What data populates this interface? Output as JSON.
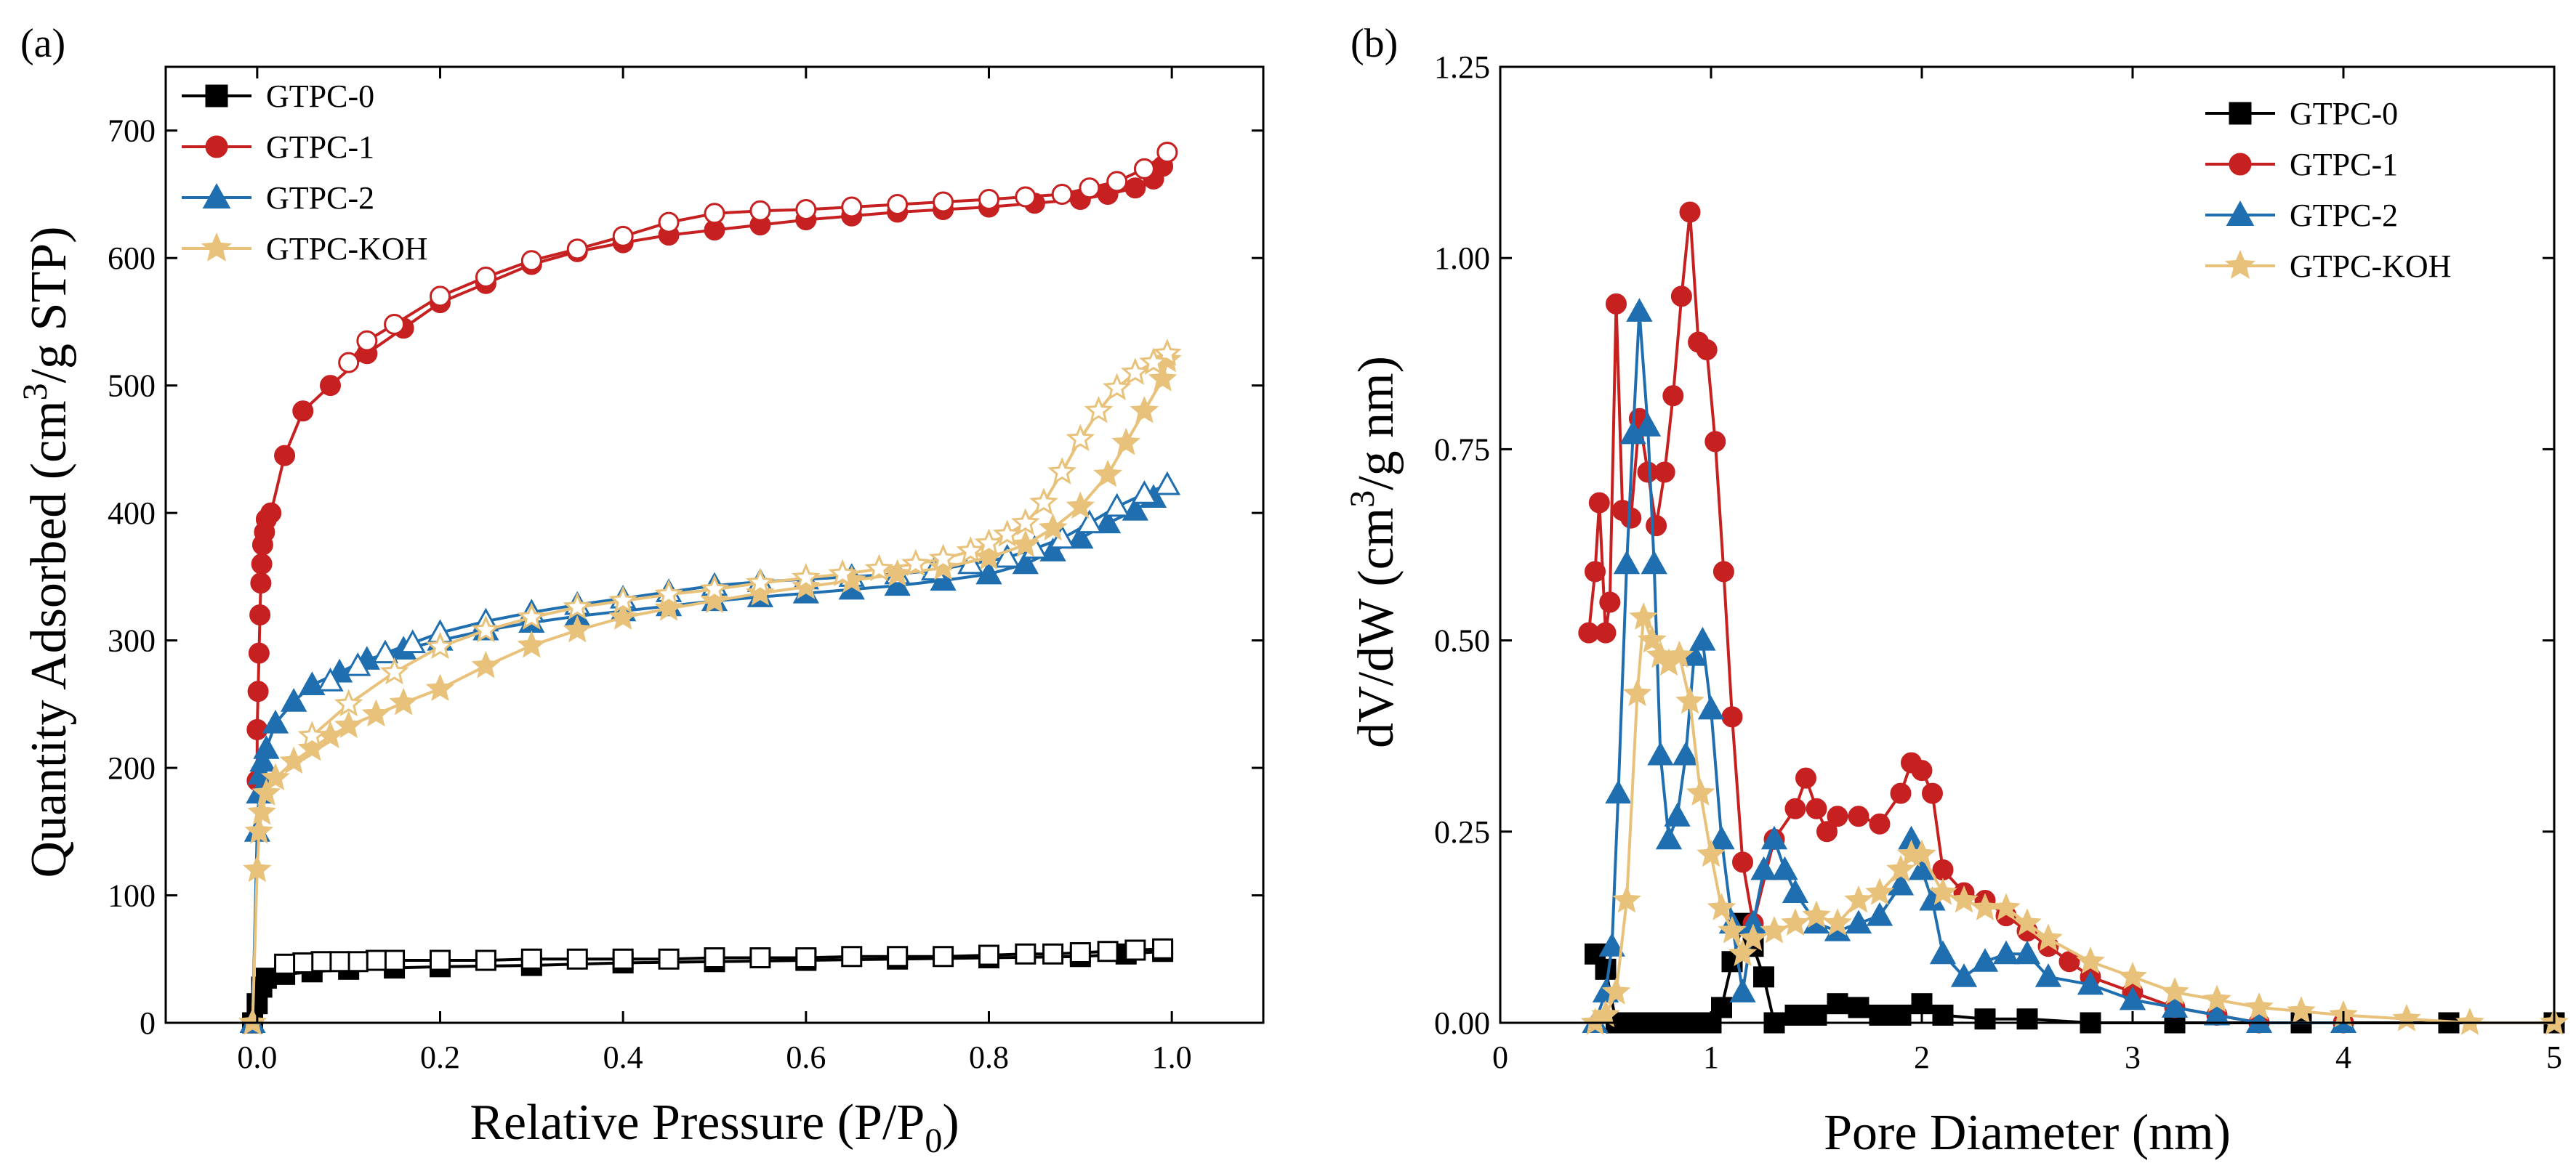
{
  "chart_data": [
    {
      "panel": "(a)",
      "type": "line",
      "xlabel": "Relative Pressure (P/P",
      "xlabel_sub": "0",
      "xlabel_end": ")",
      "ylabel": "Quantity Adsorbed (cm",
      "ylabel_sup": "3",
      "ylabel_end": "/g STP)",
      "xlim": [
        -0.1,
        1.1
      ],
      "ylim": [
        0,
        750
      ],
      "xticks": [
        0.0,
        0.2,
        0.4,
        0.6,
        0.8,
        1.0
      ],
      "xtick_labels": [
        "0.0",
        "0.2",
        "0.4",
        "0.6",
        "0.8",
        "1.0"
      ],
      "yticks": [
        0,
        100,
        200,
        300,
        400,
        500,
        600,
        700
      ],
      "ytick_labels": [
        "0",
        "100",
        "200",
        "300",
        "400",
        "500",
        "600",
        "700"
      ],
      "legend": "top-left",
      "series": [
        {
          "name": "GTPC-0",
          "color": "#000000",
          "marker": "square",
          "adsorption": {
            "x": [
              -0.005,
              0.0,
              0.005,
              0.01,
              0.03,
              0.06,
              0.1,
              0.15,
              0.2,
              0.3,
              0.4,
              0.5,
              0.6,
              0.7,
              0.8,
              0.9,
              0.95,
              0.99
            ],
            "y": [
              0,
              15,
              28,
              35,
              38,
              40,
              42,
              43,
              44,
              45,
              47,
              48,
              49,
              50,
              51,
              52,
              54,
              56
            ]
          },
          "desorption": {
            "x": [
              0.99,
              0.96,
              0.93,
              0.9,
              0.87,
              0.84,
              0.8,
              0.75,
              0.7,
              0.65,
              0.6,
              0.55,
              0.5,
              0.45,
              0.4,
              0.35,
              0.3,
              0.25,
              0.2,
              0.15,
              0.13,
              0.11,
              0.09,
              0.07,
              0.05,
              0.03
            ],
            "y": [
              58,
              57,
              56,
              55,
              54,
              54,
              53,
              52,
              52,
              52,
              51,
              51,
              51,
              50,
              50,
              50,
              50,
              49,
              49,
              49,
              49,
              48,
              48,
              48,
              47,
              46
            ]
          }
        },
        {
          "name": "GTPC-1",
          "color": "#c62021",
          "marker": "circle",
          "adsorption": {
            "x": [
              0.0,
              0.0,
              0.001,
              0.002,
              0.003,
              0.004,
              0.005,
              0.006,
              0.008,
              0.01,
              0.015,
              0.03,
              0.05,
              0.08,
              0.12,
              0.16,
              0.2,
              0.25,
              0.3,
              0.35,
              0.4,
              0.45,
              0.5,
              0.55,
              0.6,
              0.65,
              0.7,
              0.75,
              0.8,
              0.85,
              0.9,
              0.93,
              0.96,
              0.98,
              0.99,
              0.995
            ],
            "y": [
              190,
              230,
              260,
              290,
              320,
              345,
              360,
              375,
              385,
              395,
              400,
              445,
              480,
              500,
              525,
              545,
              565,
              580,
              595,
              605,
              612,
              618,
              622,
              626,
              630,
              633,
              636,
              638,
              640,
              643,
              646,
              650,
              655,
              662,
              672,
              683
            ]
          },
          "desorption": {
            "x": [
              0.995,
              0.97,
              0.94,
              0.91,
              0.88,
              0.84,
              0.8,
              0.75,
              0.7,
              0.65,
              0.6,
              0.55,
              0.5,
              0.45,
              0.4,
              0.35,
              0.3,
              0.25,
              0.2,
              0.15,
              0.12,
              0.1
            ],
            "y": [
              683,
              670,
              660,
              655,
              650,
              648,
              646,
              644,
              642,
              640,
              638,
              637,
              635,
              628,
              617,
              607,
              598,
              585,
              570,
              548,
              535,
              518
            ]
          }
        },
        {
          "name": "GTPC-2",
          "color": "#1f6fb0",
          "marker": "triangle",
          "adsorption": {
            "x": [
              -0.005,
              0.0,
              0.002,
              0.004,
              0.006,
              0.01,
              0.02,
              0.04,
              0.06,
              0.09,
              0.12,
              0.16,
              0.2,
              0.25,
              0.3,
              0.35,
              0.4,
              0.45,
              0.5,
              0.55,
              0.6,
              0.65,
              0.7,
              0.75,
              0.8,
              0.84,
              0.87,
              0.9,
              0.93,
              0.96,
              0.98,
              0.995
            ],
            "y": [
              0,
              150,
              180,
              195,
              205,
              215,
              235,
              252,
              265,
              275,
              285,
              293,
              300,
              308,
              314,
              319,
              323,
              327,
              331,
              334,
              337,
              340,
              343,
              347,
              352,
              360,
              370,
              380,
              392,
              402,
              412,
              422
            ]
          },
          "desorption": {
            "x": [
              0.995,
              0.97,
              0.94,
              0.91,
              0.88,
              0.85,
              0.82,
              0.78,
              0.74,
              0.7,
              0.65,
              0.6,
              0.55,
              0.5,
              0.45,
              0.4,
              0.35,
              0.3,
              0.25,
              0.2,
              0.17,
              0.14,
              0.11,
              0.08
            ],
            "y": [
              422,
              415,
              405,
              392,
              380,
              372,
              365,
              360,
              355,
              352,
              350,
              348,
              346,
              343,
              338,
              333,
              328,
              322,
              315,
              306,
              298,
              290,
              280,
              268
            ]
          }
        },
        {
          "name": "GTPC-KOH",
          "color": "#e8c27a",
          "marker": "star",
          "adsorption": {
            "x": [
              -0.005,
              0.0,
              0.002,
              0.005,
              0.01,
              0.02,
              0.04,
              0.06,
              0.08,
              0.1,
              0.13,
              0.16,
              0.2,
              0.25,
              0.3,
              0.35,
              0.4,
              0.45,
              0.5,
              0.55,
              0.6,
              0.65,
              0.7,
              0.75,
              0.8,
              0.84,
              0.87,
              0.9,
              0.93,
              0.95,
              0.97,
              0.99,
              0.995
            ],
            "y": [
              0,
              120,
              150,
              165,
              180,
              192,
              205,
              215,
              225,
              233,
              242,
              251,
              262,
              280,
              296,
              308,
              318,
              325,
              331,
              337,
              342,
              347,
              352,
              357,
              365,
              375,
              388,
              405,
              430,
              455,
              480,
              505,
              520
            ]
          },
          "desorption": {
            "x": [
              0.995,
              0.98,
              0.96,
              0.94,
              0.92,
              0.9,
              0.88,
              0.86,
              0.84,
              0.82,
              0.8,
              0.78,
              0.75,
              0.72,
              0.68,
              0.64,
              0.6,
              0.55,
              0.5,
              0.45,
              0.4,
              0.35,
              0.3,
              0.25,
              0.2,
              0.15,
              0.1,
              0.06
            ],
            "y": [
              525,
              518,
              510,
              498,
              480,
              458,
              432,
              408,
              392,
              383,
              376,
              370,
              364,
              360,
              356,
              352,
              349,
              345,
              340,
              336,
              331,
              326,
              318,
              308,
              295,
              275,
              250,
              225
            ]
          }
        }
      ]
    },
    {
      "panel": "(b)",
      "type": "line",
      "xlabel": "Pore Diameter (nm)",
      "ylabel": "dV/dW (cm",
      "ylabel_sup": "3",
      "ylabel_end": "/g nm)",
      "xlim": [
        0,
        5
      ],
      "ylim": [
        0,
        1.25
      ],
      "xticks": [
        0,
        1,
        2,
        3,
        4,
        5
      ],
      "xtick_labels": [
        "0",
        "1",
        "2",
        "3",
        "4",
        "5"
      ],
      "yticks": [
        0.0,
        0.25,
        0.5,
        0.75,
        1.0,
        1.25
      ],
      "ytick_labels": [
        "0.00",
        "0.25",
        "0.50",
        "0.75",
        "1.00",
        "1.25"
      ],
      "legend": "top-right",
      "series": [
        {
          "name": "GTPC-0",
          "color": "#000000",
          "marker": "square",
          "x": [
            0.45,
            0.5,
            0.55,
            0.6,
            0.7,
            0.8,
            0.9,
            1.0,
            1.05,
            1.1,
            1.15,
            1.2,
            1.25,
            1.3,
            1.4,
            1.5,
            1.6,
            1.7,
            1.8,
            1.9,
            2.0,
            2.1,
            2.3,
            2.5,
            2.8,
            3.2,
            3.8,
            4.5,
            5.0
          ],
          "y": [
            0.09,
            0.07,
            0.0,
            0.0,
            0.0,
            0.0,
            0.0,
            0.0,
            0.02,
            0.08,
            0.13,
            0.1,
            0.06,
            0.0,
            0.01,
            0.01,
            0.025,
            0.02,
            0.01,
            0.01,
            0.025,
            0.01,
            0.005,
            0.005,
            0.0,
            0.0,
            0.0,
            0.0,
            0.0
          ]
        },
        {
          "name": "GTPC-1",
          "color": "#c62021",
          "marker": "circle",
          "x": [
            0.42,
            0.45,
            0.47,
            0.5,
            0.52,
            0.55,
            0.58,
            0.62,
            0.66,
            0.7,
            0.74,
            0.78,
            0.82,
            0.86,
            0.9,
            0.94,
            0.98,
            1.02,
            1.06,
            1.1,
            1.15,
            1.2,
            1.3,
            1.4,
            1.45,
            1.5,
            1.55,
            1.6,
            1.7,
            1.8,
            1.9,
            1.95,
            2.0,
            2.05,
            2.1,
            2.2,
            2.3,
            2.4,
            2.5,
            2.6,
            2.7,
            2.8,
            3.0,
            3.2,
            3.4,
            3.6,
            4.0
          ],
          "y": [
            0.51,
            0.59,
            0.68,
            0.51,
            0.55,
            0.94,
            0.67,
            0.66,
            0.79,
            0.72,
            0.65,
            0.72,
            0.82,
            0.95,
            1.06,
            0.89,
            0.88,
            0.76,
            0.59,
            0.4,
            0.21,
            0.13,
            0.24,
            0.28,
            0.32,
            0.28,
            0.25,
            0.27,
            0.27,
            0.26,
            0.3,
            0.34,
            0.33,
            0.3,
            0.2,
            0.17,
            0.16,
            0.14,
            0.12,
            0.1,
            0.08,
            0.06,
            0.04,
            0.02,
            0.01,
            0.0,
            0.0
          ]
        },
        {
          "name": "GTPC-2",
          "color": "#1f6fb0",
          "marker": "triangle",
          "x": [
            0.45,
            0.5,
            0.53,
            0.56,
            0.6,
            0.63,
            0.66,
            0.7,
            0.73,
            0.76,
            0.8,
            0.84,
            0.88,
            0.92,
            0.96,
            1.0,
            1.05,
            1.1,
            1.15,
            1.2,
            1.25,
            1.3,
            1.35,
            1.4,
            1.5,
            1.6,
            1.7,
            1.8,
            1.9,
            1.95,
            2.0,
            2.05,
            2.1,
            2.2,
            2.3,
            2.4,
            2.5,
            2.6,
            2.8,
            3.0,
            3.2,
            3.4,
            3.6,
            4.0
          ],
          "y": [
            0.0,
            0.04,
            0.1,
            0.3,
            0.6,
            0.77,
            0.93,
            0.78,
            0.6,
            0.35,
            0.24,
            0.27,
            0.35,
            0.48,
            0.5,
            0.41,
            0.24,
            0.13,
            0.04,
            0.13,
            0.2,
            0.24,
            0.2,
            0.17,
            0.13,
            0.12,
            0.13,
            0.14,
            0.18,
            0.24,
            0.2,
            0.16,
            0.09,
            0.06,
            0.08,
            0.09,
            0.09,
            0.06,
            0.05,
            0.03,
            0.02,
            0.01,
            0.0,
            0.0
          ]
        },
        {
          "name": "GTPC-KOH",
          "color": "#e8c27a",
          "marker": "star",
          "x": [
            0.45,
            0.5,
            0.55,
            0.6,
            0.65,
            0.68,
            0.72,
            0.76,
            0.8,
            0.85,
            0.9,
            0.95,
            1.0,
            1.05,
            1.1,
            1.15,
            1.2,
            1.3,
            1.4,
            1.5,
            1.6,
            1.7,
            1.8,
            1.9,
            1.95,
            2.0,
            2.1,
            2.2,
            2.3,
            2.4,
            2.5,
            2.6,
            2.8,
            3.0,
            3.2,
            3.4,
            3.6,
            3.8,
            4.0,
            4.3,
            4.6,
            5.0
          ],
          "y": [
            0.0,
            0.01,
            0.04,
            0.16,
            0.43,
            0.53,
            0.5,
            0.48,
            0.47,
            0.48,
            0.42,
            0.3,
            0.22,
            0.15,
            0.12,
            0.09,
            0.11,
            0.12,
            0.13,
            0.14,
            0.13,
            0.16,
            0.17,
            0.2,
            0.22,
            0.22,
            0.17,
            0.16,
            0.15,
            0.15,
            0.13,
            0.11,
            0.08,
            0.06,
            0.04,
            0.03,
            0.02,
            0.015,
            0.01,
            0.005,
            0.0,
            0.0
          ]
        }
      ]
    }
  ]
}
